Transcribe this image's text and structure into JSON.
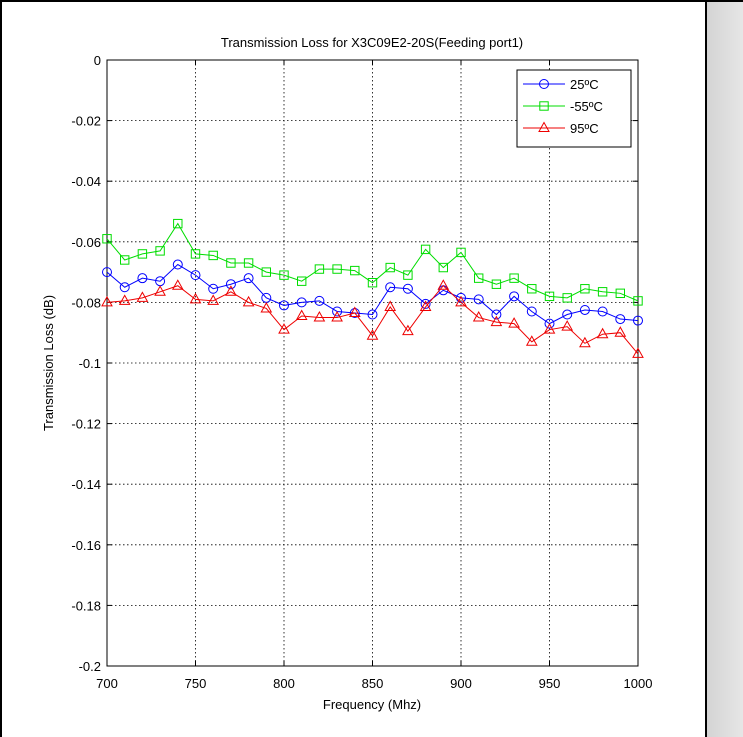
{
  "colors": {
    "series_1": "#0000ff",
    "series_2": "#00dd00",
    "series_3": "#ee0000",
    "grid": "#000000",
    "side_panel": "#dcdcdc"
  },
  "chart_data": {
    "type": "line",
    "title": "Transmission Loss for X3C09E2-20S(Feeding port1)",
    "xlabel": "Frequency (Mhz)",
    "ylabel": "Transmission Loss (dB)",
    "xlim": [
      700,
      1000
    ],
    "ylim": [
      -0.2,
      0
    ],
    "grid": true,
    "legend_position": "top-right",
    "x_ticks": [
      "700",
      "750",
      "800",
      "850",
      "900",
      "950",
      "1000"
    ],
    "y_ticks": [
      "0",
      "-0.02",
      "-0.04",
      "-0.06",
      "-0.08",
      "-0.1",
      "-0.12",
      "-0.14",
      "-0.16",
      "-0.18",
      "-0.2"
    ],
    "x": [
      700,
      710,
      720,
      730,
      740,
      750,
      760,
      770,
      780,
      790,
      800,
      810,
      820,
      830,
      840,
      850,
      860,
      870,
      880,
      890,
      900,
      910,
      920,
      930,
      940,
      950,
      960,
      970,
      980,
      990,
      1000
    ],
    "series": [
      {
        "name": "25ºC",
        "marker": "circle",
        "color": "#0000ff",
        "values": [
          -0.07,
          -0.075,
          -0.072,
          -0.073,
          -0.0675,
          -0.071,
          -0.0755,
          -0.074,
          -0.072,
          -0.0785,
          -0.081,
          -0.08,
          -0.0795,
          -0.083,
          -0.0835,
          -0.084,
          -0.075,
          -0.0755,
          -0.0805,
          -0.076,
          -0.0785,
          -0.079,
          -0.084,
          -0.078,
          -0.083,
          -0.087,
          -0.084,
          -0.0825,
          -0.083,
          -0.0855,
          -0.086
        ]
      },
      {
        "name": "-55ºC",
        "marker": "square",
        "color": "#00dd00",
        "values": [
          -0.059,
          -0.066,
          -0.064,
          -0.063,
          -0.054,
          -0.064,
          -0.0645,
          -0.067,
          -0.067,
          -0.07,
          -0.071,
          -0.073,
          -0.069,
          -0.069,
          -0.0695,
          -0.0735,
          -0.0685,
          -0.071,
          -0.0625,
          -0.0685,
          -0.0635,
          -0.072,
          -0.074,
          -0.072,
          -0.0755,
          -0.078,
          -0.0785,
          -0.0755,
          -0.0765,
          -0.077,
          -0.0795
        ]
      },
      {
        "name": "95ºC",
        "marker": "triangle",
        "color": "#ee0000",
        "values": [
          -0.08,
          -0.0795,
          -0.0785,
          -0.0765,
          -0.0745,
          -0.079,
          -0.0795,
          -0.0765,
          -0.08,
          -0.082,
          -0.089,
          -0.0845,
          -0.085,
          -0.085,
          -0.0835,
          -0.091,
          -0.0815,
          -0.0895,
          -0.0815,
          -0.0745,
          -0.08,
          -0.085,
          -0.0865,
          -0.087,
          -0.093,
          -0.089,
          -0.088,
          -0.0935,
          -0.0905,
          -0.09,
          -0.097
        ]
      }
    ]
  }
}
